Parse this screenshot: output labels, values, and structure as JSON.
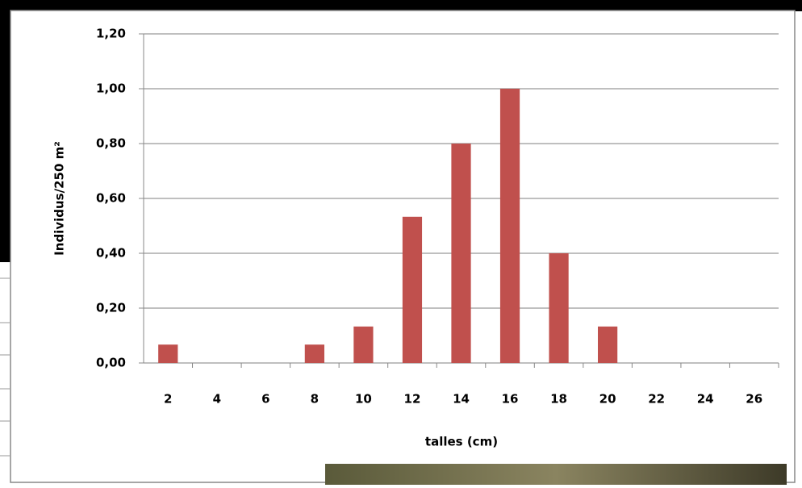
{
  "chart_data": {
    "type": "bar",
    "x_label": "talles (cm)",
    "y_label": "Individus/250 m²",
    "categories": [
      "2",
      "4",
      "6",
      "8",
      "10",
      "12",
      "14",
      "16",
      "18",
      "20",
      "22",
      "24",
      "26"
    ],
    "values": [
      0.067,
      0,
      0,
      0.067,
      0.133,
      0.533,
      0.8,
      1.0,
      0.4,
      0.133,
      0,
      0,
      0
    ],
    "color": "#c0504d",
    "ylim": [
      0,
      1.2
    ],
    "yticks": [
      {
        "value": 0,
        "label": "0,00"
      },
      {
        "value": 0.2,
        "label": "0,20"
      },
      {
        "value": 0.4,
        "label": "0,40"
      },
      {
        "value": 0.6,
        "label": "0,60"
      },
      {
        "value": 0.8,
        "label": "0,80"
      },
      {
        "value": 1.0,
        "label": "1,00"
      },
      {
        "value": 1.2,
        "label": "1,20"
      }
    ],
    "grid": true
  }
}
